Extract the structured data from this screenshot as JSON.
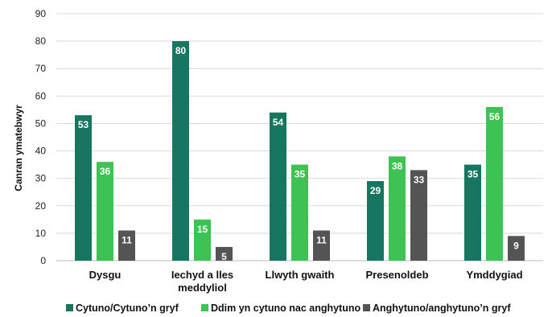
{
  "chart_data": {
    "type": "bar",
    "categories": [
      [
        "Dysgu"
      ],
      [
        "Iechyd a lles",
        "meddyliol"
      ],
      [
        "Llwyth gwaith"
      ],
      [
        "Presenoldeb"
      ],
      [
        "Ymddygiad"
      ]
    ],
    "series": [
      {
        "name": "Cytuno/Cytuno’n gryf",
        "color": "#17765f",
        "values": [
          53,
          80,
          54,
          29,
          35
        ]
      },
      {
        "name": "Ddim yn cytuno nac anghytuno",
        "color": "#3ec253",
        "values": [
          36,
          15,
          35,
          38,
          56
        ]
      },
      {
        "name": "Anghytuno/anghytuno’n gryf",
        "color": "#545454",
        "values": [
          11,
          5,
          11,
          33,
          9
        ]
      }
    ],
    "ylabel": "Canran ymatebwyr",
    "xlabel": "",
    "ylim": [
      0,
      90
    ],
    "yticks": [
      0,
      10,
      20,
      30,
      40,
      50,
      60,
      70,
      80,
      90
    ],
    "grid": true,
    "legend": "bottom"
  }
}
